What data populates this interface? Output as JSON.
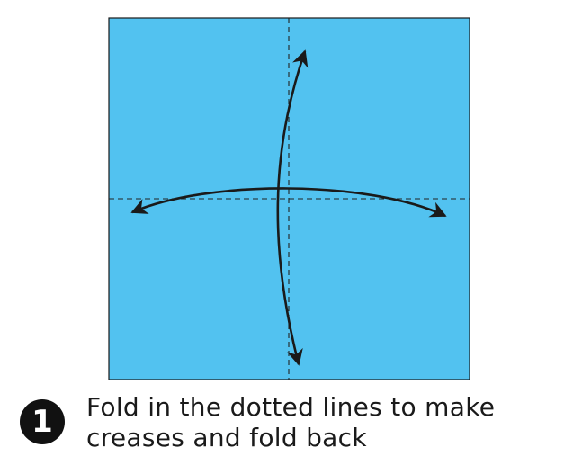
{
  "colors": {
    "paper": "#52c2f0",
    "ink": "#1a1a1a",
    "fold_line": "#222222"
  },
  "icons": {
    "arrows": "curved-double-fold-arrow-icon",
    "fold_lines": "dashed-fold-line"
  },
  "step": {
    "number": "1",
    "line1": "Fold in the dotted lines to make",
    "line2": "creases and fold back"
  }
}
